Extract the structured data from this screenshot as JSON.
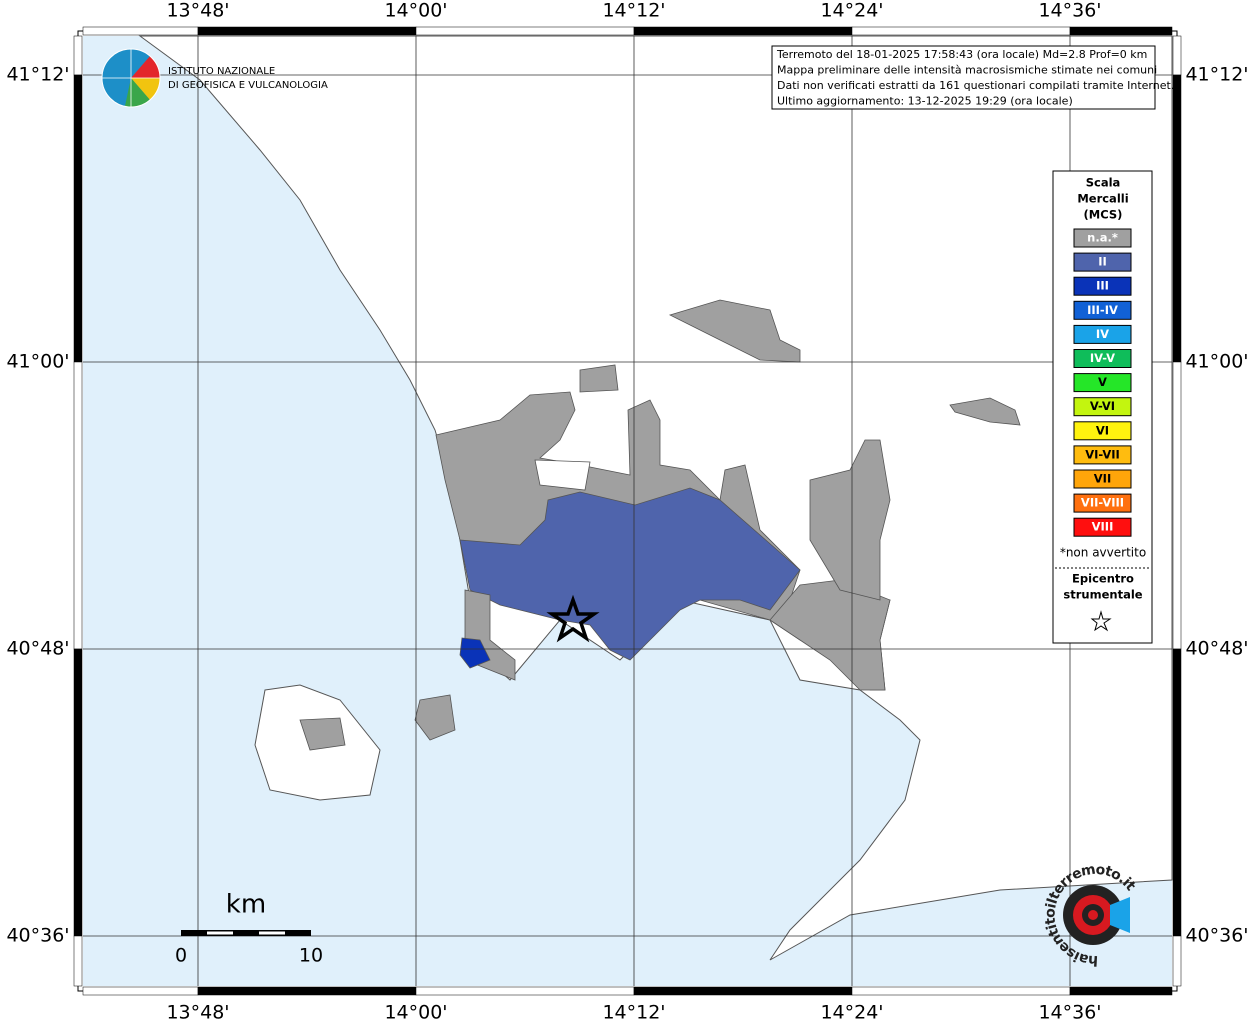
{
  "logo": {
    "line1": "ISTITUTO NAZIONALE",
    "line2": "DI GEOFISICA E VULCANOLOGIA"
  },
  "info": [
    "Terremoto del 18-01-2025 17:58:43 (ora locale) Md=2.8 Prof=0 km",
    "Mappa preliminare delle intensità macrosismiche stimate nei comuni",
    "Dati non verificati estratti da 161 questionari compilati tramite Internet.",
    "Ultimo aggiornamento: 13-12-2025 19:29 (ora locale)"
  ],
  "axes": {
    "lon": [
      "13°48'",
      "14°00'",
      "14°12'",
      "14°24'",
      "14°36'"
    ],
    "lat": [
      "41°12'",
      "41°00'",
      "40°48'",
      "40°36'"
    ]
  },
  "legend": {
    "title": [
      "Scala",
      "Mercalli",
      "(MCS)"
    ],
    "items": [
      {
        "label": "n.a.*",
        "color": "#a0a0a0"
      },
      {
        "label": "II",
        "color": "#4f64ac"
      },
      {
        "label": "III",
        "color": "#0a33b8"
      },
      {
        "label": "III-IV",
        "color": "#1161d6"
      },
      {
        "label": "IV",
        "color": "#1aa3e8"
      },
      {
        "label": "IV-V",
        "color": "#0fbd5a"
      },
      {
        "label": "V",
        "color": "#25e628"
      },
      {
        "label": "V-VI",
        "color": "#c3f50f"
      },
      {
        "label": "VI",
        "color": "#fff30f"
      },
      {
        "label": "VI-VII",
        "color": "#ffbc0f"
      },
      {
        "label": "VII",
        "color": "#ffa50a"
      },
      {
        "label": "VII-VIII",
        "color": "#ff700f"
      },
      {
        "label": "VIII",
        "color": "#ff0f0f"
      }
    ],
    "note": "*non avvertito",
    "epicenter": [
      "Epicentro",
      "strumentale"
    ]
  },
  "scale_bar": {
    "unit": "km",
    "ticks": [
      "0",
      "10"
    ]
  },
  "badge": "haisentitoilterremoto.it"
}
